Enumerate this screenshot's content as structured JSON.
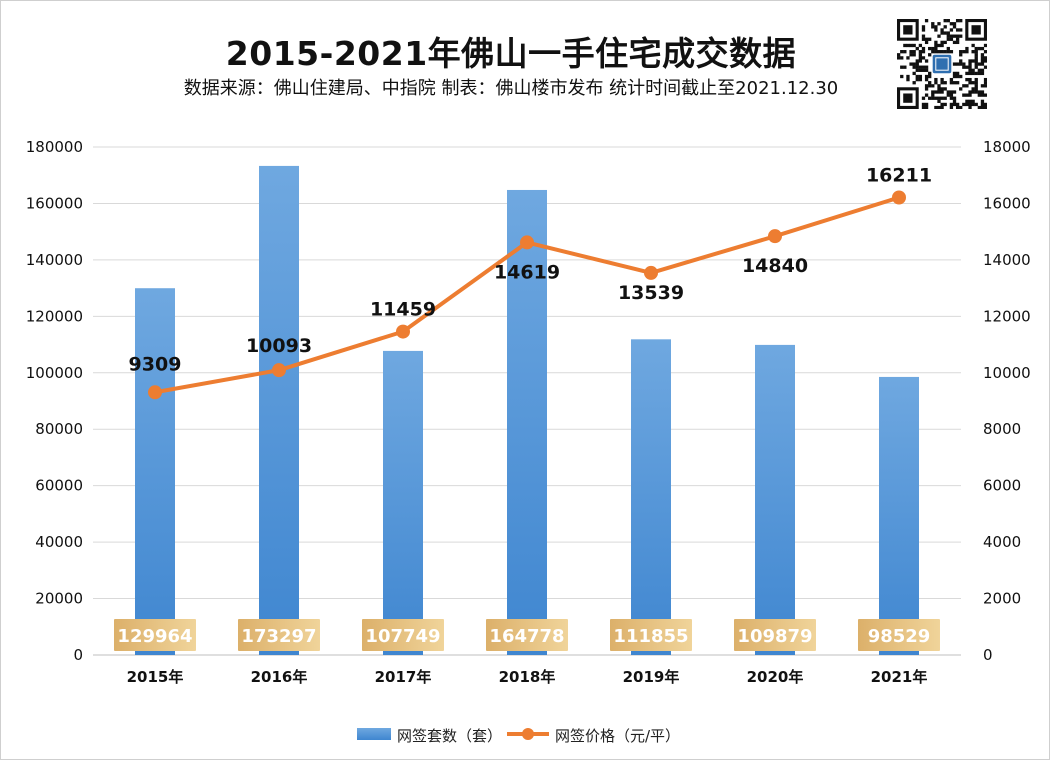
{
  "title": "2015-2021年佛山一手住宅成交数据",
  "subtitle": "数据来源：佛山住建局、中指院  制表：佛山楼市发布  统计时间截止至2021.12.30",
  "colors": {
    "bar": "#4d8fd3",
    "line": "#ed7d31",
    "bar_label_bg": "#e9c383",
    "grid": "#d9d9d9"
  },
  "chart_data": {
    "type": "bar",
    "categories": [
      "2015年",
      "2016年",
      "2017年",
      "2018年",
      "2019年",
      "2020年",
      "2021年"
    ],
    "series": [
      {
        "name": "网签套数（套）",
        "type": "bar",
        "axis": "left",
        "values": [
          129964,
          173297,
          107749,
          164778,
          111855,
          109879,
          98529
        ]
      },
      {
        "name": "网签价格（元/平）",
        "type": "line",
        "axis": "right",
        "values": [
          9309,
          10093,
          11459,
          14619,
          13539,
          14840,
          16211
        ]
      }
    ],
    "ylim_left": [
      0,
      180000
    ],
    "yticks_left": [
      "0",
      "20000",
      "40000",
      "60000",
      "80000",
      "100000",
      "120000",
      "140000",
      "160000",
      "180000"
    ],
    "ylim_right": [
      0,
      18000
    ],
    "yticks_right": [
      "0",
      "2000",
      "4000",
      "6000",
      "8000",
      "10000",
      "12000",
      "14000",
      "16000",
      "18000"
    ],
    "grid": true,
    "legend_position": "bottom"
  }
}
